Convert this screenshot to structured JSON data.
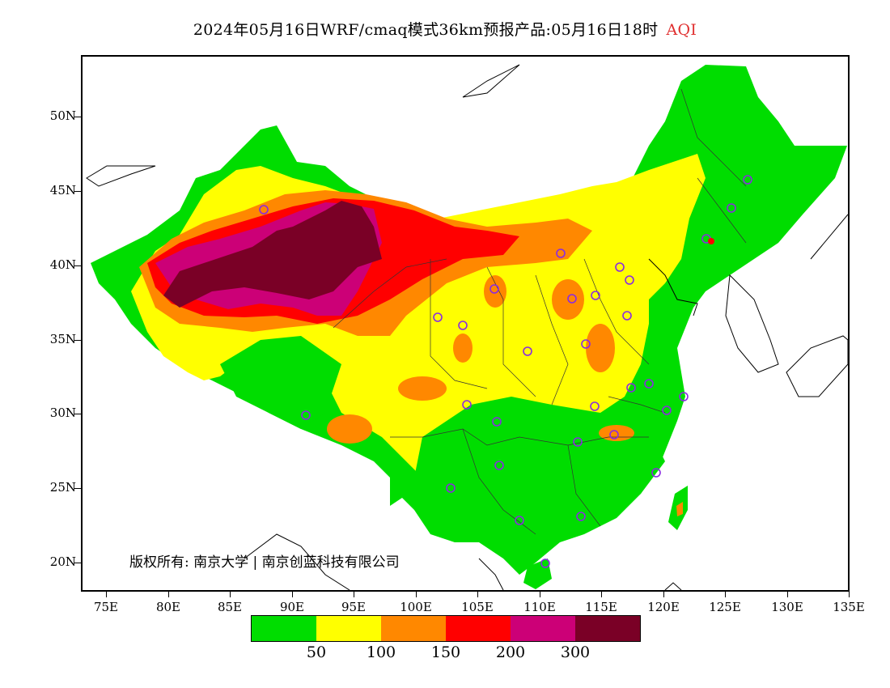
{
  "title": {
    "text": "2024年05月16日WRF/cmaq模式36km预报产品:05月16日18时",
    "variable": "AQI",
    "variable_color": "#e03030"
  },
  "axes": {
    "y_labels": [
      "50N",
      "45N",
      "40N",
      "35N",
      "30N",
      "25N",
      "20N"
    ],
    "x_labels": [
      "75E",
      "80E",
      "85E",
      "90E",
      "95E",
      "100E",
      "105E",
      "110E",
      "115E",
      "120E",
      "125E",
      "130E",
      "135E"
    ]
  },
  "copyright": "版权所有: 南京大学 | 南京创蓝科技有限公司",
  "legend": {
    "colors": [
      "#00dd00",
      "#ffff00",
      "#ff8800",
      "#ff0000",
      "#cc0077",
      "#7a0026"
    ],
    "labels": [
      "50",
      "100",
      "150",
      "200",
      "300"
    ]
  },
  "map_data": {
    "type": "filled-contour",
    "extent": {
      "lon": [
        73,
        135
      ],
      "lat": [
        18,
        54
      ]
    },
    "stations_marker": "circle",
    "stations_color": "#8a2be2"
  }
}
